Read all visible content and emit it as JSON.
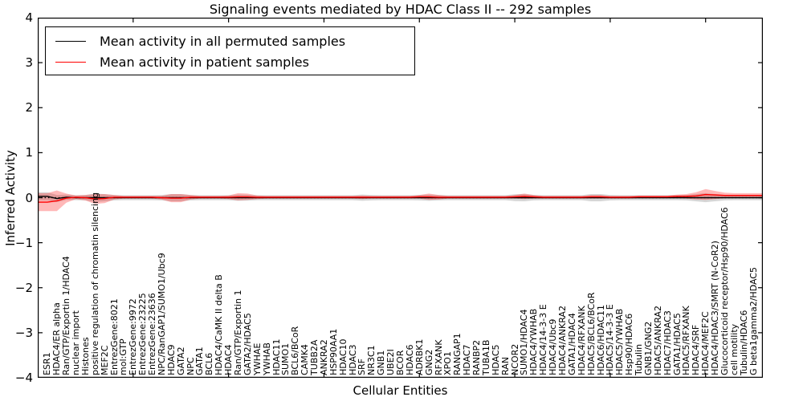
{
  "title": "Signaling events mediated by HDAC Class II -- 292 samples",
  "legend": {
    "items": [
      {
        "label": "Mean activity in all permuted samples",
        "color": "#000000"
      },
      {
        "label": "Mean activity in patient samples",
        "color": "#ff0000"
      }
    ]
  },
  "chart_data": {
    "type": "line",
    "title": "Signaling events mediated by HDAC Class II -- 292 samples",
    "xlabel": "Cellular Entities",
    "ylabel": "Inferred Activity",
    "ylim": [
      -4,
      4
    ],
    "yticks": [
      4,
      3,
      2,
      1,
      0,
      -1,
      -2,
      -3,
      -4
    ],
    "ytick_labels": [
      "4",
      "3",
      "2",
      "1",
      "0",
      "−1",
      "−2",
      "−3",
      "−4"
    ],
    "xticks_numeric": [
      10,
      20,
      30,
      40,
      50,
      60,
      70
    ],
    "grid": false,
    "legend_position": "upper left",
    "zero_line": {
      "y": 0,
      "style": "dotted",
      "color": "#000000"
    },
    "categories": [
      "ESR1",
      "HDAC4/ER alpha",
      "Ran/GTP/Exportin 1/HDAC4",
      "nuclear import",
      "Histones",
      "positive regulation of chromatin silencing",
      "MEF2C",
      "EntrezGene:8021",
      "mol:GTP",
      "EntrezGene:9972",
      "EntrezGene:23225",
      "EntrezGene:23636",
      "NPC/RanGAP1/SUMO1/Ubc9",
      "HDAC9",
      "GATA2",
      "NPC",
      "GATA1",
      "BCL6",
      "HDAC4/CaMK II delta B",
      "HDAC4",
      "Ran/GTP/Exportin 1",
      "GATA2/HDAC5",
      "YWHAE",
      "YWHAB",
      "HDAC11",
      "SUMO1",
      "BCL6/BCoR",
      "CAMK4",
      "TUBB2A",
      "ANKRA2",
      "HSP90AA1",
      "HDAC10",
      "HDAC3",
      "SRF",
      "NR3C1",
      "GNB1",
      "UBE2I",
      "BCOR",
      "HDAC6",
      "ADRBK1",
      "GNG2",
      "RFXANK",
      "XPO1",
      "RANGAP1",
      "HDAC7",
      "RANBP2",
      "TUBA1B",
      "HDAC5",
      "RAN",
      "NCOR2",
      "SUMO1/HDAC4",
      "HDAC4/YWHAB",
      "HDAC4/14-3-3 E",
      "HDAC4/Ubc9",
      "HDAC4/ANKRA2",
      "GATA1/HDAC4",
      "HDAC4/RFXANK",
      "HDAC5/BCL6/BCoR",
      "HDAC6/HDAC11",
      "HDAC5/14-3-3 E",
      "HDAC5/YWHAB",
      "Hsp90/HDAC6",
      "Tubulin",
      "GNB1/GNG2",
      "HDAC5/ANKRA2",
      "HDAC7/HDAC3",
      "GATA1/HDAC5",
      "HDAC5/RFXANK",
      "HDAC4/SRF",
      "HDAC4/MEF2C",
      "HDAC4/HDAC3/SMRT (N-CoR2)",
      "Glucocorticoid receptor/Hsp90/HDAC6",
      "cell motility",
      "Tubulin/HDAC6",
      "G beta1gamma2/HDAC5"
    ],
    "series": [
      {
        "id": "permuted",
        "name": "Mean activity in all permuted samples",
        "color": "#000000",
        "band_color": "rgba(0,0,0,0.16)",
        "values": [
          0.03,
          -0.02,
          0.01,
          0,
          0,
          0,
          0,
          0,
          0,
          0,
          0,
          0,
          0,
          0,
          0,
          0,
          0,
          0,
          0,
          0,
          0,
          0,
          0,
          0,
          0,
          0,
          0,
          0,
          0,
          0,
          0,
          0,
          0,
          0,
          0,
          0,
          0,
          0,
          0,
          0,
          0,
          0,
          0,
          0,
          0,
          0,
          0,
          0,
          0,
          0,
          0,
          0,
          0,
          0,
          0,
          0,
          0,
          0,
          0,
          0,
          0,
          0,
          0,
          0,
          0,
          0,
          0,
          0,
          0,
          0,
          0,
          0,
          0,
          0,
          0
        ],
        "band_halfwidth": [
          0.09,
          0.08,
          0.06,
          0.055,
          0.06,
          0.09,
          0.08,
          0.06,
          0.055,
          0.055,
          0.055,
          0.055,
          0.06,
          0.08,
          0.08,
          0.06,
          0.055,
          0.055,
          0.055,
          0.055,
          0.07,
          0.065,
          0.055,
          0.055,
          0.055,
          0.055,
          0.055,
          0.055,
          0.055,
          0.055,
          0.055,
          0.055,
          0.055,
          0.07,
          0.06,
          0.055,
          0.055,
          0.055,
          0.055,
          0.06,
          0.07,
          0.06,
          0.055,
          0.055,
          0.055,
          0.055,
          0.055,
          0.055,
          0.055,
          0.075,
          0.08,
          0.06,
          0.055,
          0.055,
          0.055,
          0.055,
          0.055,
          0.08,
          0.08,
          0.06,
          0.055,
          0.055,
          0.055,
          0.055,
          0.055,
          0.055,
          0.055,
          0.06,
          0.08,
          0.1,
          0.08,
          0.06,
          0.055,
          0.055,
          0.055
        ]
      },
      {
        "id": "patient",
        "name": "Mean activity in patient samples",
        "color": "#ff0000",
        "band_color": "rgba(255,0,0,0.28)",
        "values": [
          -0.1,
          -0.07,
          -0.01,
          0.01,
          0,
          -0.03,
          -0.02,
          0.01,
          0.01,
          0.01,
          0.01,
          0.01,
          0,
          -0.01,
          -0.01,
          0.01,
          0.01,
          0.01,
          0.01,
          0.01,
          0.02,
          0.02,
          0.01,
          0.01,
          0.01,
          0.01,
          0.01,
          0.01,
          0.01,
          0.01,
          0.01,
          0.01,
          0.01,
          0.01,
          0.01,
          0.01,
          0.01,
          0.01,
          0.01,
          0.02,
          0.02,
          0.01,
          0.01,
          0.01,
          0.01,
          0.01,
          0.01,
          0.01,
          0.01,
          0.02,
          0.03,
          0.02,
          0.01,
          0.01,
          0.01,
          0.01,
          0.01,
          0.02,
          0.02,
          0.01,
          0.01,
          0.01,
          0.02,
          0.02,
          0.02,
          0.02,
          0.03,
          0.03,
          0.04,
          0.07,
          0.06,
          0.05,
          0.05,
          0.05,
          0.05
        ],
        "band_halfwidth": [
          0.2,
          0.23,
          0.1,
          0.04,
          0.06,
          0.11,
          0.1,
          0.05,
          0.03,
          0.03,
          0.03,
          0.03,
          0.04,
          0.09,
          0.09,
          0.05,
          0.03,
          0.03,
          0.03,
          0.04,
          0.08,
          0.07,
          0.04,
          0.03,
          0.03,
          0.03,
          0.03,
          0.03,
          0.03,
          0.03,
          0.03,
          0.03,
          0.03,
          0.04,
          0.03,
          0.03,
          0.03,
          0.03,
          0.03,
          0.04,
          0.07,
          0.05,
          0.03,
          0.03,
          0.03,
          0.03,
          0.03,
          0.03,
          0.03,
          0.04,
          0.06,
          0.04,
          0.03,
          0.03,
          0.03,
          0.03,
          0.03,
          0.04,
          0.04,
          0.03,
          0.03,
          0.03,
          0.03,
          0.03,
          0.03,
          0.03,
          0.04,
          0.05,
          0.08,
          0.12,
          0.09,
          0.06,
          0.05,
          0.05,
          0.05
        ]
      }
    ]
  }
}
